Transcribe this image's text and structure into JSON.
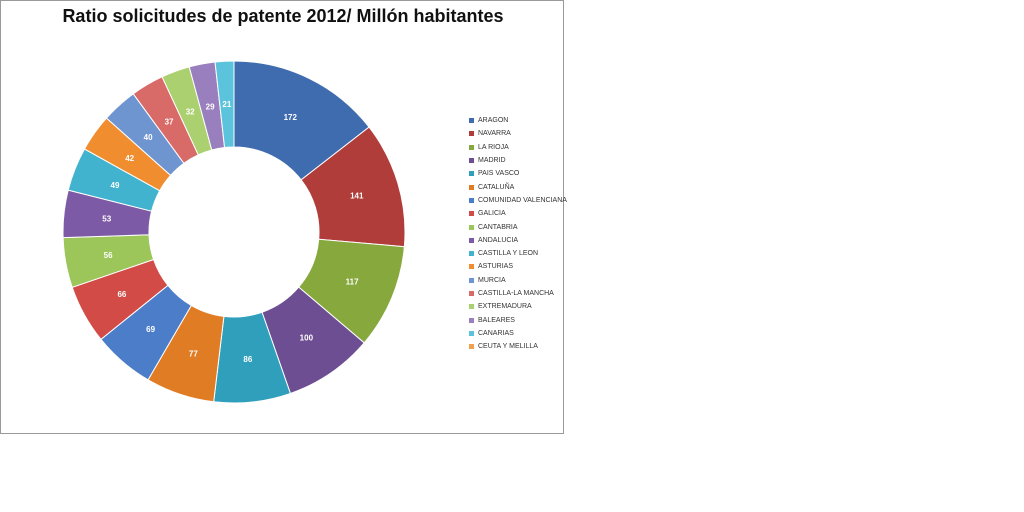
{
  "chart_data": {
    "type": "pie",
    "title": "Ratio solicitudes de patente 2012/ Millón  habitantes",
    "donut": true,
    "legend": "right",
    "categories": [
      "ARAGON",
      "NAVARRA",
      "LA RIOJA",
      "MADRID",
      "PAIS VASCO",
      "CATALUÑA",
      "COMUNIDAD VALENCIANA",
      "GALICIA",
      "CANTABRIA",
      "ANDALUCIA",
      "CASTILLA Y LEON",
      "ASTURIAS",
      "MURCIA",
      "CASTILLA-LA MANCHA",
      "EXTREMADURA",
      "BALEARES",
      "CANARIAS",
      "CEUTA Y MELILLA"
    ],
    "values": [
      172,
      141,
      117,
      100,
      86,
      77,
      69,
      66,
      56,
      53,
      49,
      42,
      40,
      37,
      32,
      29,
      21,
      0
    ],
    "labels": [
      "172",
      "141",
      "117",
      "100",
      "86",
      "77",
      "69",
      "66",
      "56",
      "53",
      "49",
      "42",
      "40",
      "37",
      "32",
      "29",
      "21",
      ""
    ],
    "colors": [
      "#3f6cae",
      "#b13d3a",
      "#86a83d",
      "#6e4e93",
      "#2f9fbc",
      "#e07d24",
      "#4b7dc8",
      "#d24b47",
      "#9cc55a",
      "#7d5aa6",
      "#42b3cf",
      "#f08e2f",
      "#6f95d1",
      "#d86a67",
      "#abd06f",
      "#9a7fbe",
      "#5cc3dd",
      "#f3a04e"
    ]
  }
}
